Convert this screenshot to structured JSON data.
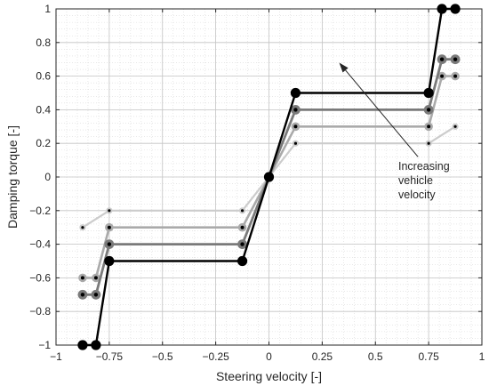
{
  "chart_data": {
    "type": "line",
    "title": "",
    "xlabel": "Steering velocity [-]",
    "ylabel": "Damping torque [-]",
    "xlim": [
      -1,
      1
    ],
    "ylim": [
      -1,
      1
    ],
    "xticks": [
      -1,
      -0.75,
      -0.5,
      -0.25,
      0,
      0.25,
      0.5,
      0.75,
      1
    ],
    "xtick_labels": [
      "−1",
      "−0.75",
      "−0.5",
      "−0.25",
      "0",
      "0.25",
      "0.5",
      "0.75",
      "1"
    ],
    "yticks": [
      -1,
      -0.8,
      -0.6,
      -0.4,
      -0.2,
      0,
      0.2,
      0.4,
      0.6,
      0.8,
      1
    ],
    "ytick_labels": [
      "−1",
      "−0.8",
      "−0.6",
      "−0.4",
      "−0.2",
      "0",
      "0.2",
      "0.4",
      "0.6",
      "0.8",
      "1"
    ],
    "grid": true,
    "minor_grid": true,
    "annotation": {
      "lines": [
        "Increasing",
        "vehicle",
        "velocity"
      ],
      "arrow_from": [
        0.7,
        0.12
      ],
      "arrow_to": [
        0.33,
        0.68
      ]
    },
    "series": [
      {
        "color": "#cccccc",
        "x": [
          -0.875,
          -0.75,
          -0.125,
          0,
          0.125,
          0.75,
          0.875
        ],
        "y": [
          -0.3,
          -0.2,
          -0.2,
          0,
          0.2,
          0.2,
          0.3
        ]
      },
      {
        "color": "#aaaaaa",
        "x": [
          -0.875,
          -0.8125,
          -0.75,
          -0.125,
          0,
          0.125,
          0.75,
          0.8125,
          0.875
        ],
        "y": [
          -0.6,
          -0.6,
          -0.3,
          -0.3,
          0,
          0.3,
          0.3,
          0.6,
          0.6
        ]
      },
      {
        "color": "#7a7a7a",
        "x": [
          -0.875,
          -0.8125,
          -0.75,
          -0.125,
          0,
          0.125,
          0.75,
          0.8125,
          0.875
        ],
        "y": [
          -0.7,
          -0.7,
          -0.4,
          -0.4,
          0,
          0.4,
          0.4,
          0.7,
          0.7
        ]
      },
      {
        "color": "#000000",
        "x": [
          -0.875,
          -0.8125,
          -0.75,
          -0.125,
          0,
          0.125,
          0.75,
          0.8125,
          0.875
        ],
        "y": [
          -1,
          -1,
          -0.5,
          -0.5,
          0,
          0.5,
          0.5,
          1,
          1
        ]
      }
    ]
  }
}
